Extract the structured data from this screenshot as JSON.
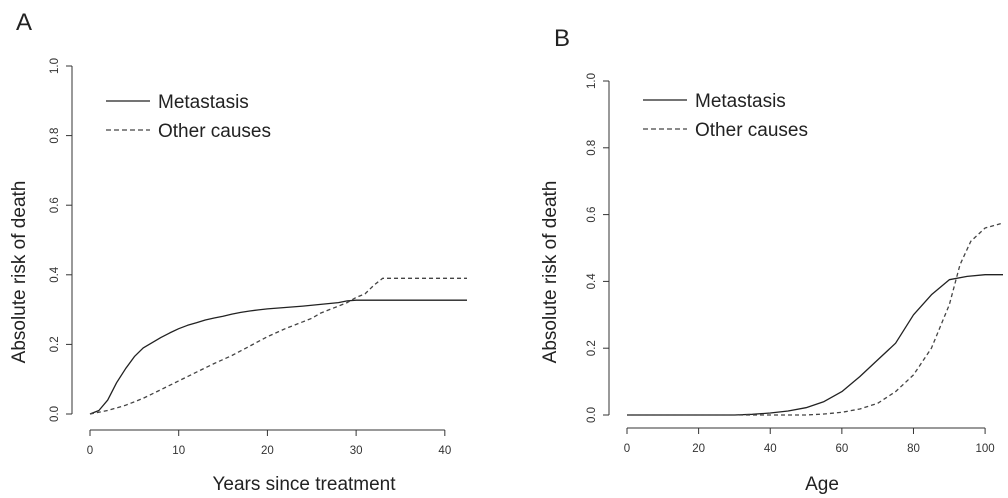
{
  "chart_data": [
    {
      "panel": "A",
      "type": "line",
      "xlabel": "Years since treatment",
      "ylabel": "Absolute risk of death",
      "xlim": [
        0,
        42.5
      ],
      "ylim": [
        0,
        1.0
      ],
      "xticks": [
        "0",
        "10",
        "20",
        "30",
        "40"
      ],
      "yticks": [
        "0.0",
        "0.2",
        "0.4",
        "0.6",
        "0.8",
        "1.0"
      ],
      "legend_position": "top-left",
      "grid": false,
      "series": [
        {
          "name": "Metastasis",
          "style": "solid",
          "color": "#222222",
          "points": [
            [
              0,
              0
            ],
            [
              1,
              0.01
            ],
            [
              2,
              0.04
            ],
            [
              3,
              0.09
            ],
            [
              4,
              0.13
            ],
            [
              5,
              0.165
            ],
            [
              6,
              0.19
            ],
            [
              7,
              0.205
            ],
            [
              8,
              0.22
            ],
            [
              9,
              0.233
            ],
            [
              10,
              0.245
            ],
            [
              11,
              0.255
            ],
            [
              12,
              0.262
            ],
            [
              13,
              0.27
            ],
            [
              14,
              0.276
            ],
            [
              15,
              0.281
            ],
            [
              16,
              0.287
            ],
            [
              17,
              0.292
            ],
            [
              18,
              0.296
            ],
            [
              19,
              0.299
            ],
            [
              20,
              0.302
            ],
            [
              22,
              0.306
            ],
            [
              24,
              0.31
            ],
            [
              26,
              0.315
            ],
            [
              28,
              0.32
            ],
            [
              29,
              0.325
            ],
            [
              30,
              0.327
            ],
            [
              42.5,
              0.327
            ]
          ]
        },
        {
          "name": "Other causes",
          "style": "dashed",
          "color": "#444444",
          "points": [
            [
              0,
              0
            ],
            [
              2,
              0.01
            ],
            [
              4,
              0.025
            ],
            [
              6,
              0.045
            ],
            [
              8,
              0.07
            ],
            [
              10,
              0.095
            ],
            [
              12,
              0.12
            ],
            [
              14,
              0.145
            ],
            [
              16,
              0.168
            ],
            [
              18,
              0.195
            ],
            [
              20,
              0.222
            ],
            [
              22,
              0.245
            ],
            [
              24,
              0.265
            ],
            [
              25,
              0.275
            ],
            [
              26,
              0.29
            ],
            [
              28,
              0.31
            ],
            [
              29,
              0.32
            ],
            [
              30,
              0.335
            ],
            [
              31,
              0.345
            ],
            [
              32,
              0.37
            ],
            [
              33,
              0.39
            ],
            [
              42.5,
              0.39
            ]
          ]
        }
      ]
    },
    {
      "panel": "B",
      "type": "line",
      "xlabel": "Age",
      "ylabel": "Absolute risk of death",
      "xlim": [
        0,
        105
      ],
      "ylim": [
        0,
        1.0
      ],
      "xticks": [
        "0",
        "20",
        "40",
        "60",
        "80",
        "100"
      ],
      "yticks": [
        "0.0",
        "0.2",
        "0.4",
        "0.6",
        "0.8",
        "1.0"
      ],
      "legend_position": "top-left",
      "grid": false,
      "series": [
        {
          "name": "Metastasis",
          "style": "solid",
          "color": "#222222",
          "points": [
            [
              0,
              0
            ],
            [
              30,
              0
            ],
            [
              35,
              0.002
            ],
            [
              40,
              0.006
            ],
            [
              45,
              0.012
            ],
            [
              50,
              0.022
            ],
            [
              55,
              0.04
            ],
            [
              60,
              0.07
            ],
            [
              65,
              0.115
            ],
            [
              70,
              0.165
            ],
            [
              75,
              0.215
            ],
            [
              80,
              0.3
            ],
            [
              85,
              0.36
            ],
            [
              90,
              0.405
            ],
            [
              95,
              0.415
            ],
            [
              100,
              0.42
            ],
            [
              105,
              0.42
            ]
          ]
        },
        {
          "name": "Other causes",
          "style": "dashed",
          "color": "#444444",
          "points": [
            [
              0,
              0
            ],
            [
              50,
              0
            ],
            [
              55,
              0.003
            ],
            [
              60,
              0.008
            ],
            [
              65,
              0.018
            ],
            [
              70,
              0.035
            ],
            [
              75,
              0.07
            ],
            [
              80,
              0.12
            ],
            [
              85,
              0.2
            ],
            [
              90,
              0.33
            ],
            [
              93,
              0.45
            ],
            [
              96,
              0.52
            ],
            [
              100,
              0.56
            ],
            [
              105,
              0.575
            ]
          ]
        }
      ]
    }
  ]
}
